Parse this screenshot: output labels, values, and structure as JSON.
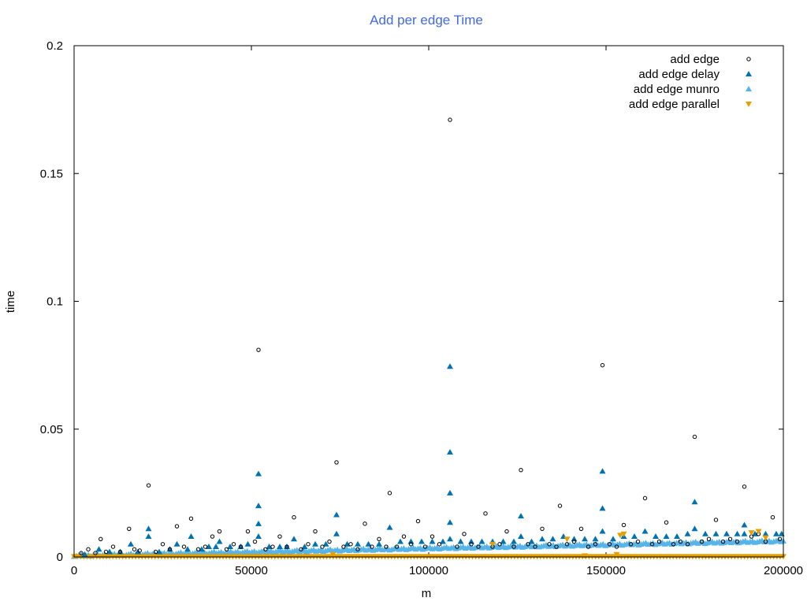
{
  "chart_data": {
    "type": "scatter",
    "title": "Add per edge Time",
    "xlabel": "m",
    "ylabel": "time",
    "xlim": [
      0,
      200000
    ],
    "ylim": [
      0,
      0.2
    ],
    "x_ticks": [
      0,
      50000,
      100000,
      150000,
      200000
    ],
    "x_tick_labels": [
      "0",
      "50000",
      "100000",
      "150000",
      "200000"
    ],
    "y_ticks": [
      0,
      0.05,
      0.1,
      0.15,
      0.2
    ],
    "y_tick_labels": [
      "0",
      "0.05",
      "0.1",
      "0.15",
      "0.2"
    ],
    "grid": false,
    "legend_position": "top-right",
    "title_color": "#4169e1",
    "series": [
      {
        "name": "add edge",
        "marker": "open-circle",
        "color": "#000000",
        "points": [
          [
            2000,
            0.0015
          ],
          [
            4000,
            0.003
          ],
          [
            6000,
            0.0015
          ],
          [
            7500,
            0.007
          ],
          [
            9000,
            0.002
          ],
          [
            11000,
            0.004
          ],
          [
            13000,
            0.002
          ],
          [
            15500,
            0.011
          ],
          [
            17000,
            0.003
          ],
          [
            18500,
            0.0025
          ],
          [
            21000,
            0.028
          ],
          [
            23000,
            0.002
          ],
          [
            25000,
            0.005
          ],
          [
            27000,
            0.003
          ],
          [
            29000,
            0.012
          ],
          [
            31000,
            0.004
          ],
          [
            33000,
            0.015
          ],
          [
            35000,
            0.003
          ],
          [
            37000,
            0.004
          ],
          [
            39000,
            0.008
          ],
          [
            41000,
            0.01
          ],
          [
            43000,
            0.003
          ],
          [
            45000,
            0.005
          ],
          [
            47000,
            0.004
          ],
          [
            49000,
            0.01
          ],
          [
            51000,
            0.006
          ],
          [
            52000,
            0.081
          ],
          [
            54000,
            0.003
          ],
          [
            56000,
            0.004
          ],
          [
            58000,
            0.008
          ],
          [
            60000,
            0.004
          ],
          [
            62000,
            0.0155
          ],
          [
            64000,
            0.003
          ],
          [
            66000,
            0.005
          ],
          [
            68000,
            0.01
          ],
          [
            70000,
            0.004
          ],
          [
            72000,
            0.006
          ],
          [
            74000,
            0.037
          ],
          [
            76000,
            0.004
          ],
          [
            78000,
            0.005
          ],
          [
            80000,
            0.003
          ],
          [
            82000,
            0.013
          ],
          [
            84000,
            0.004
          ],
          [
            86000,
            0.007
          ],
          [
            88000,
            0.004
          ],
          [
            89000,
            0.025
          ],
          [
            91000,
            0.004
          ],
          [
            93000,
            0.008
          ],
          [
            95000,
            0.005
          ],
          [
            97000,
            0.014
          ],
          [
            99000,
            0.004
          ],
          [
            101000,
            0.008
          ],
          [
            103000,
            0.005
          ],
          [
            106000,
            0.171
          ],
          [
            108000,
            0.004
          ],
          [
            110000,
            0.009
          ],
          [
            112000,
            0.005
          ],
          [
            114000,
            0.004
          ],
          [
            116000,
            0.017
          ],
          [
            118000,
            0.004
          ],
          [
            120000,
            0.005
          ],
          [
            122000,
            0.01
          ],
          [
            124000,
            0.004
          ],
          [
            126000,
            0.034
          ],
          [
            128000,
            0.005
          ],
          [
            130000,
            0.004
          ],
          [
            132000,
            0.011
          ],
          [
            134000,
            0.005
          ],
          [
            136000,
            0.004
          ],
          [
            137000,
            0.02
          ],
          [
            139000,
            0.005
          ],
          [
            141000,
            0.006
          ],
          [
            143000,
            0.011
          ],
          [
            145000,
            0.004
          ],
          [
            147000,
            0.005
          ],
          [
            149000,
            0.075
          ],
          [
            151000,
            0.005
          ],
          [
            153000,
            0.004
          ],
          [
            155000,
            0.0125
          ],
          [
            157000,
            0.005
          ],
          [
            159000,
            0.006
          ],
          [
            161000,
            0.023
          ],
          [
            163000,
            0.005
          ],
          [
            165000,
            0.006
          ],
          [
            167000,
            0.0135
          ],
          [
            169000,
            0.005
          ],
          [
            171000,
            0.006
          ],
          [
            173000,
            0.005
          ],
          [
            175000,
            0.047
          ],
          [
            177000,
            0.006
          ],
          [
            179000,
            0.007
          ],
          [
            181000,
            0.0145
          ],
          [
            183000,
            0.006
          ],
          [
            185000,
            0.007
          ],
          [
            187000,
            0.006
          ],
          [
            189000,
            0.0275
          ],
          [
            191000,
            0.008
          ],
          [
            193000,
            0.009
          ],
          [
            195000,
            0.006
          ],
          [
            197000,
            0.0155
          ],
          [
            199000,
            0.007
          ]
        ]
      },
      {
        "name": "add edge delay",
        "marker": "filled-triangle-up",
        "color": "#0072b2",
        "points": [
          [
            3000,
            0.001
          ],
          [
            7000,
            0.003
          ],
          [
            10000,
            0.002
          ],
          [
            13000,
            0.002
          ],
          [
            16000,
            0.005
          ],
          [
            18000,
            0.002
          ],
          [
            21000,
            0.011
          ],
          [
            21000,
            0.008
          ],
          [
            24000,
            0.002
          ],
          [
            27000,
            0.003
          ],
          [
            29000,
            0.005
          ],
          [
            32000,
            0.003
          ],
          [
            33000,
            0.008
          ],
          [
            36000,
            0.003
          ],
          [
            38000,
            0.004
          ],
          [
            40000,
            0.004
          ],
          [
            41000,
            0.006
          ],
          [
            44000,
            0.004
          ],
          [
            47000,
            0.004
          ],
          [
            49000,
            0.005
          ],
          [
            52000,
            0.0325
          ],
          [
            52000,
            0.02
          ],
          [
            52000,
            0.013
          ],
          [
            52000,
            0.008
          ],
          [
            55000,
            0.004
          ],
          [
            58000,
            0.004
          ],
          [
            60000,
            0.004
          ],
          [
            62000,
            0.007
          ],
          [
            65000,
            0.004
          ],
          [
            68000,
            0.005
          ],
          [
            71000,
            0.005
          ],
          [
            74000,
            0.0165
          ],
          [
            74000,
            0.009
          ],
          [
            77000,
            0.005
          ],
          [
            80000,
            0.005
          ],
          [
            83000,
            0.005
          ],
          [
            86000,
            0.005
          ],
          [
            89000,
            0.0115
          ],
          [
            92000,
            0.006
          ],
          [
            95000,
            0.006
          ],
          [
            98000,
            0.006
          ],
          [
            101000,
            0.006
          ],
          [
            104000,
            0.006
          ],
          [
            106000,
            0.0745
          ],
          [
            106000,
            0.041
          ],
          [
            106000,
            0.025
          ],
          [
            106000,
            0.0135
          ],
          [
            106000,
            0.007
          ],
          [
            109000,
            0.006
          ],
          [
            112000,
            0.006
          ],
          [
            115000,
            0.006
          ],
          [
            118000,
            0.006
          ],
          [
            121000,
            0.006
          ],
          [
            124000,
            0.006
          ],
          [
            126000,
            0.016
          ],
          [
            126000,
            0.008
          ],
          [
            129000,
            0.006
          ],
          [
            132000,
            0.007
          ],
          [
            135000,
            0.007
          ],
          [
            138000,
            0.008
          ],
          [
            141000,
            0.007
          ],
          [
            144000,
            0.007
          ],
          [
            147000,
            0.007
          ],
          [
            149000,
            0.0335
          ],
          [
            149000,
            0.019
          ],
          [
            149000,
            0.01
          ],
          [
            152000,
            0.007
          ],
          [
            155000,
            0.008
          ],
          [
            158000,
            0.008
          ],
          [
            161000,
            0.01
          ],
          [
            164000,
            0.008
          ],
          [
            167000,
            0.008
          ],
          [
            170000,
            0.008
          ],
          [
            173000,
            0.009
          ],
          [
            175000,
            0.0215
          ],
          [
            175000,
            0.011
          ],
          [
            178000,
            0.009
          ],
          [
            181000,
            0.009
          ],
          [
            184000,
            0.009
          ],
          [
            187000,
            0.009
          ],
          [
            189000,
            0.0125
          ],
          [
            189000,
            0.009
          ],
          [
            192000,
            0.009
          ],
          [
            195000,
            0.009
          ],
          [
            198000,
            0.009
          ],
          [
            199500,
            0.009
          ]
        ]
      },
      {
        "name": "add edge munro",
        "marker": "filled-triangle-up",
        "color": "#56b4e9",
        "trend": {
          "x_start": 0,
          "y_start": 0.0005,
          "x_end": 200000,
          "y_end": 0.0062,
          "count": 300
        }
      },
      {
        "name": "add edge parallel",
        "marker": "filled-triangle-down",
        "color": "#e69f00",
        "baseline": {
          "x_start": 0,
          "x_end": 200000,
          "y": 0.0002,
          "count": 220
        },
        "points": [
          [
            73000,
            0.001
          ],
          [
            118000,
            0.005
          ],
          [
            139000,
            0.007
          ],
          [
            144000,
            0.0005
          ],
          [
            154000,
            0.0085
          ],
          [
            155000,
            0.009
          ],
          [
            153000,
            0.001
          ],
          [
            191000,
            0.0095
          ],
          [
            193000,
            0.01
          ],
          [
            195000,
            0.0075
          ]
        ]
      }
    ]
  }
}
